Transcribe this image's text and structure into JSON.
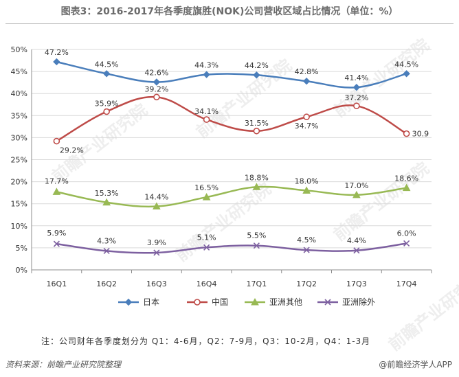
{
  "title": "图表3：2016-2017年各季度旗胜(NOK)公司营收区域占比情况（单位：%）",
  "footnote": "注：公司财年各季度划分为 Q1：4-6月，Q2：7-9月，Q3：10-2月，Q4：1-3月",
  "source": "资料来源：前瞻产业研究院整理",
  "credit": "@前瞻经济学人APP",
  "watermark": "前瞻产业研究院",
  "chart_data": {
    "type": "line",
    "categories": [
      "16Q1",
      "16Q2",
      "16Q3",
      "16Q4",
      "17Q1",
      "17Q2",
      "17Q3",
      "17Q4"
    ],
    "ylim": [
      0,
      50
    ],
    "yticks": [
      "0%",
      "5%",
      "10%",
      "15%",
      "20%",
      "25%",
      "30%",
      "35%",
      "40%",
      "45%",
      "50%"
    ],
    "grid": true,
    "legend": "bottom",
    "series": [
      {
        "name": "日本",
        "color": "#4a7ebb",
        "marker": "diamond",
        "values": [
          47.2,
          44.5,
          42.6,
          44.3,
          44.2,
          42.8,
          41.4,
          44.5
        ],
        "labels": [
          "47.2%",
          "44.5%",
          "42.6%",
          "44.3%",
          "44.2%",
          "42.8%",
          "41.4%",
          "44.5%"
        ]
      },
      {
        "name": "中国",
        "color": "#be4b48",
        "marker": "circle",
        "values": [
          29.2,
          35.9,
          39.2,
          34.1,
          31.5,
          34.7,
          37.2,
          30.9
        ],
        "labels": [
          "29.2%",
          "35.9%",
          "39.2%",
          "34.1%",
          "31.5%",
          "34.7%",
          "37.2%",
          "30.9"
        ]
      },
      {
        "name": "亚洲其他",
        "color": "#98b954",
        "marker": "triangle",
        "values": [
          17.7,
          15.3,
          14.4,
          16.5,
          18.8,
          18.0,
          17.0,
          18.6
        ],
        "labels": [
          "17.7%",
          "15.3%",
          "14.4%",
          "16.5%",
          "18.8%",
          "18.0%",
          "17.0%",
          "18.6%"
        ]
      },
      {
        "name": "亚洲除外",
        "color": "#7d60a0",
        "marker": "x",
        "values": [
          5.9,
          4.3,
          3.9,
          5.1,
          5.5,
          4.5,
          4.4,
          6.0
        ],
        "labels": [
          "5.9%",
          "4.3%",
          "3.9%",
          "5.1%",
          "5.5%",
          "4.5%",
          "4.4%",
          "6.0%"
        ]
      }
    ]
  }
}
